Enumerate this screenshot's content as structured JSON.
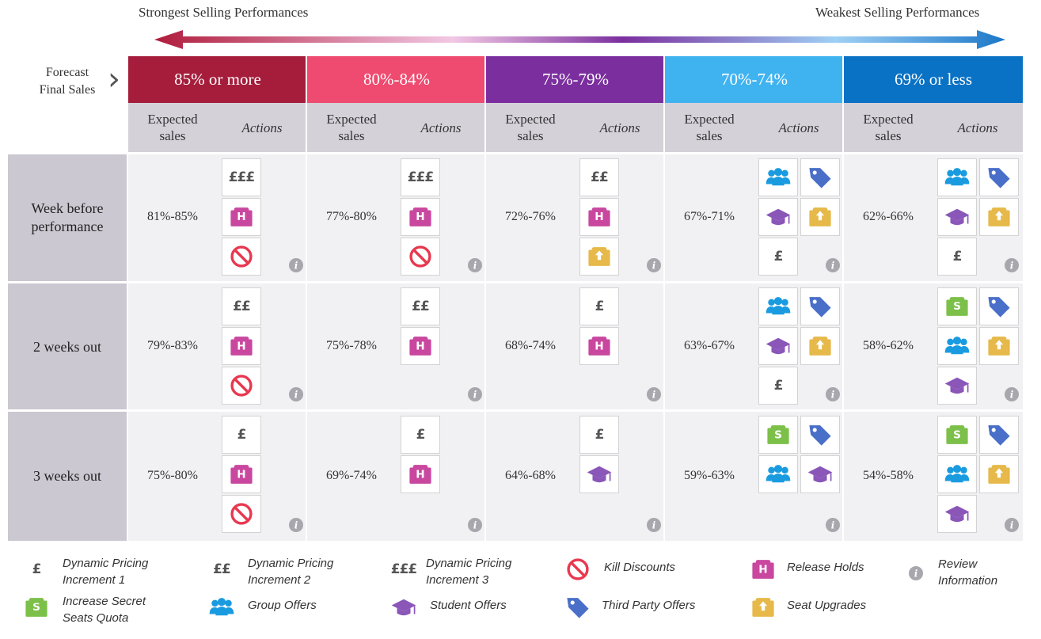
{
  "top": {
    "left_label": "Strongest Selling Performances",
    "right_label": "Weakest Selling Performances"
  },
  "forecast_label": {
    "line1": "Forecast",
    "line2": "Final Sales"
  },
  "bands": [
    {
      "label": "85% or more",
      "color": "#a51d3b"
    },
    {
      "label": "80%-84%",
      "color": "#ef4a6f"
    },
    {
      "label": "75%-79%",
      "color": "#7b2f9e"
    },
    {
      "label": "70%-74%",
      "color": "#3fb3f0"
    },
    {
      "label": "69% or less",
      "color": "#0a72c4"
    }
  ],
  "subheaders": {
    "expected_line1": "Expected",
    "expected_line2": "sales",
    "actions": "Actions"
  },
  "pounds": {
    "p1": "£",
    "p2": "££",
    "p3": "£££"
  },
  "rows": [
    {
      "label_line1": "Week before",
      "label_line2": "performance",
      "cells": [
        {
          "pct": "81%-85%",
          "icons": [
            "pound3",
            "release-holds",
            "kill-discounts"
          ]
        },
        {
          "pct": "77%-80%",
          "icons": [
            "pound3",
            "release-holds",
            "kill-discounts"
          ]
        },
        {
          "pct": "72%-76%",
          "icons": [
            "pound2",
            "release-holds",
            "seat-upgrades"
          ]
        },
        {
          "pct": "67%-71%",
          "icons": [
            "group-offers",
            "third-party-offers",
            "student-offers",
            "seat-upgrades",
            "pound1"
          ]
        },
        {
          "pct": "62%-66%",
          "icons": [
            "group-offers",
            "third-party-offers",
            "student-offers",
            "seat-upgrades",
            "pound1"
          ]
        }
      ]
    },
    {
      "label_line1": "2 weeks out",
      "label_line2": "",
      "cells": [
        {
          "pct": "79%-83%",
          "icons": [
            "pound2",
            "release-holds",
            "kill-discounts"
          ]
        },
        {
          "pct": "75%-78%",
          "icons": [
            "pound2",
            "release-holds"
          ]
        },
        {
          "pct": "68%-74%",
          "icons": [
            "pound1",
            "release-holds"
          ]
        },
        {
          "pct": "63%-67%",
          "icons": [
            "group-offers",
            "third-party-offers",
            "student-offers",
            "seat-upgrades",
            "pound1"
          ]
        },
        {
          "pct": "58%-62%",
          "icons": [
            "secret-seats",
            "third-party-offers",
            "group-offers",
            "seat-upgrades",
            "student-offers"
          ]
        }
      ]
    },
    {
      "label_line1": "3 weeks out",
      "label_line2": "",
      "cells": [
        {
          "pct": "75%-80%",
          "icons": [
            "pound1",
            "release-holds",
            "kill-discounts"
          ]
        },
        {
          "pct": "69%-74%",
          "icons": [
            "pound1",
            "release-holds"
          ]
        },
        {
          "pct": "64%-68%",
          "icons": [
            "pound1",
            "student-offers"
          ]
        },
        {
          "pct": "59%-63%",
          "icons": [
            "secret-seats",
            "third-party-offers",
            "group-offers",
            "student-offers"
          ]
        },
        {
          "pct": "54%-58%",
          "icons": [
            "secret-seats",
            "third-party-offers",
            "group-offers",
            "seat-upgrades",
            "student-offers"
          ]
        }
      ]
    }
  ],
  "legend": [
    {
      "icon": "pound1",
      "line1": "Dynamic Pricing",
      "line2": "Increment 1"
    },
    {
      "icon": "pound2",
      "line1": "Dynamic Pricing",
      "line2": "Increment 2"
    },
    {
      "icon": "pound3",
      "line1": "Dynamic Pricing",
      "line2": "Increment 3"
    },
    {
      "icon": "kill-discounts",
      "line1": "Kill Discounts",
      "line2": ""
    },
    {
      "icon": "release-holds",
      "line1": "Release Holds",
      "line2": ""
    },
    {
      "icon": "info",
      "line1": "Review",
      "line2": "Information"
    },
    {
      "icon": "secret-seats",
      "line1": "Increase Secret",
      "line2": "Seats Quota"
    },
    {
      "icon": "group-offers",
      "line1": "Group Offers",
      "line2": ""
    },
    {
      "icon": "student-offers",
      "line1": "Student Offers",
      "line2": ""
    },
    {
      "icon": "third-party-offers",
      "line1": "Third Party Offers",
      "line2": ""
    },
    {
      "icon": "seat-upgrades",
      "line1": "Seat Upgrades",
      "line2": ""
    }
  ],
  "colors": {
    "release_holds": "#c9479f",
    "kill_discounts": "#e8384f",
    "group_offers": "#1a9be0",
    "third_party_offers": "#4a6fc9",
    "student_offers": "#8a56b8",
    "seat_upgrades": "#e6b94a",
    "secret_seats": "#7cc04a",
    "info": "#a7a7ad"
  }
}
